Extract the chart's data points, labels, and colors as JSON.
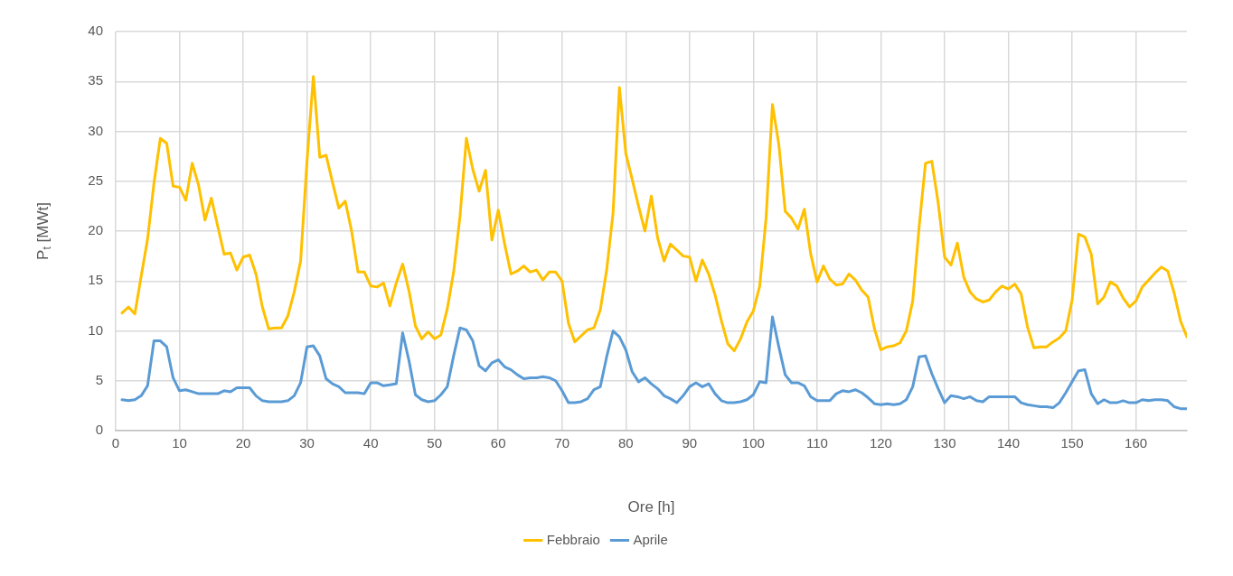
{
  "chart_data": {
    "type": "line",
    "xlabel": "Ore [h]",
    "ylabel": "P$_{t}$ [MWt]",
    "x": [
      1,
      2,
      3,
      4,
      5,
      6,
      7,
      8,
      9,
      10,
      11,
      12,
      13,
      14,
      15,
      16,
      17,
      18,
      19,
      20,
      21,
      22,
      23,
      24,
      25,
      26,
      27,
      28,
      29,
      30,
      31,
      32,
      33,
      34,
      35,
      36,
      37,
      38,
      39,
      40,
      41,
      42,
      43,
      44,
      45,
      46,
      47,
      48,
      49,
      50,
      51,
      52,
      53,
      54,
      55,
      56,
      57,
      58,
      59,
      60,
      61,
      62,
      63,
      64,
      65,
      66,
      67,
      68,
      69,
      70,
      71,
      72,
      73,
      74,
      75,
      76,
      77,
      78,
      79,
      80,
      81,
      82,
      83,
      84,
      85,
      86,
      87,
      88,
      89,
      90,
      91,
      92,
      93,
      94,
      95,
      96,
      97,
      98,
      99,
      100,
      101,
      102,
      103,
      104,
      105,
      106,
      107,
      108,
      109,
      110,
      111,
      112,
      113,
      114,
      115,
      116,
      117,
      118,
      119,
      120,
      121,
      122,
      123,
      124,
      125,
      126,
      127,
      128,
      129,
      130,
      131,
      132,
      133,
      134,
      135,
      136,
      137,
      138,
      139,
      140,
      141,
      142,
      143,
      144,
      145,
      146,
      147,
      148,
      149,
      150,
      151,
      152,
      153,
      154,
      155,
      156,
      157,
      158,
      159,
      160,
      161,
      162,
      163,
      164,
      165,
      166,
      167,
      168
    ],
    "series": [
      {
        "name": "Febbraio",
        "color": "#ffc000",
        "values": [
          11.8,
          12.4,
          11.7,
          15.5,
          19.2,
          24.8,
          29.3,
          28.8,
          24.5,
          24.4,
          23.1,
          26.8,
          24.6,
          21.1,
          23.3,
          20.5,
          17.7,
          17.8,
          16.1,
          17.4,
          17.6,
          15.7,
          12.4,
          10.2,
          10.3,
          10.3,
          11.5,
          13.9,
          17.0,
          27.0,
          35.5,
          27.4,
          27.6,
          24.9,
          22.3,
          23.0,
          20.0,
          15.9,
          15.9,
          14.5,
          14.4,
          14.8,
          12.5,
          14.8,
          16.7,
          14.0,
          10.5,
          9.2,
          9.9,
          9.2,
          9.6,
          12.2,
          15.9,
          21.5,
          29.3,
          26.2,
          24.0,
          26.1,
          19.1,
          22.1,
          18.7,
          15.7,
          16.0,
          16.5,
          15.9,
          16.1,
          15.1,
          15.9,
          15.9,
          15.0,
          10.8,
          8.9,
          9.5,
          10.1,
          10.3,
          12.1,
          16.1,
          21.8,
          34.4,
          27.8,
          25.2,
          22.5,
          20.0,
          23.5,
          19.3,
          17.0,
          18.7,
          18.1,
          17.5,
          17.4,
          15.0,
          17.1,
          15.7,
          13.6,
          11.0,
          8.7,
          8.0,
          9.2,
          10.9,
          12.0,
          14.5,
          21.3,
          32.7,
          28.7,
          22.0,
          21.3,
          20.2,
          22.2,
          17.7,
          14.9,
          16.5,
          15.2,
          14.6,
          14.7,
          15.7,
          15.1,
          14.1,
          13.4,
          10.2,
          8.1,
          8.4,
          8.5,
          8.8,
          10.0,
          13.0,
          20.4,
          26.8,
          27.0,
          22.8,
          17.4,
          16.6,
          18.8,
          15.4,
          13.9,
          13.2,
          12.9,
          13.1,
          13.9,
          14.5,
          14.2,
          14.7,
          13.7,
          10.4,
          8.3,
          8.4,
          8.4,
          8.9,
          9.3,
          10.0,
          13.1,
          19.7,
          19.4,
          17.7,
          12.7,
          13.4,
          14.9,
          14.5,
          13.3,
          12.4,
          13.0,
          14.4,
          15.1,
          15.8,
          16.4,
          16.0,
          13.8,
          11.0,
          9.4
        ]
      },
      {
        "name": "Aprile",
        "color": "#5b9bd5",
        "values": [
          3.1,
          3.0,
          3.1,
          3.5,
          4.5,
          9.0,
          9.0,
          8.4,
          5.3,
          4.0,
          4.1,
          3.9,
          3.7,
          3.7,
          3.7,
          3.7,
          4.0,
          3.9,
          4.3,
          4.3,
          4.3,
          3.5,
          3.0,
          2.9,
          2.9,
          2.9,
          3.0,
          3.5,
          4.8,
          8.4,
          8.5,
          7.5,
          5.2,
          4.7,
          4.4,
          3.8,
          3.8,
          3.8,
          3.7,
          4.8,
          4.8,
          4.5,
          4.6,
          4.7,
          9.8,
          7.0,
          3.6,
          3.1,
          2.9,
          3.0,
          3.6,
          4.4,
          7.5,
          10.3,
          10.1,
          9.0,
          6.5,
          6.0,
          6.8,
          7.1,
          6.4,
          6.1,
          5.6,
          5.2,
          5.3,
          5.3,
          5.4,
          5.3,
          5.0,
          4.0,
          2.8,
          2.8,
          2.9,
          3.2,
          4.1,
          4.4,
          7.4,
          10.0,
          9.4,
          8.1,
          5.9,
          4.9,
          5.3,
          4.7,
          4.2,
          3.5,
          3.2,
          2.8,
          3.5,
          4.4,
          4.8,
          4.4,
          4.7,
          3.7,
          3.0,
          2.8,
          2.8,
          2.9,
          3.1,
          3.6,
          4.9,
          4.8,
          11.4,
          8.4,
          5.6,
          4.8,
          4.8,
          4.5,
          3.4,
          3.0,
          3.0,
          3.0,
          3.7,
          4.0,
          3.9,
          4.1,
          3.8,
          3.3,
          2.7,
          2.6,
          2.7,
          2.6,
          2.7,
          3.1,
          4.4,
          7.4,
          7.5,
          5.7,
          4.2,
          2.8,
          3.5,
          3.4,
          3.2,
          3.4,
          3.0,
          2.9,
          3.4,
          3.4,
          3.4,
          3.4,
          3.4,
          2.8,
          2.6,
          2.5,
          2.4,
          2.4,
          2.3,
          2.8,
          3.8,
          4.9,
          6.0,
          6.1,
          3.7,
          2.7,
          3.1,
          2.8,
          2.8,
          3.0,
          2.8,
          2.8,
          3.1,
          3.0,
          3.1,
          3.1,
          3.0,
          2.4,
          2.2,
          2.2
        ]
      }
    ],
    "xlim": [
      0,
      168
    ],
    "xticks": [
      0,
      10,
      20,
      30,
      40,
      50,
      60,
      70,
      80,
      90,
      100,
      110,
      120,
      130,
      140,
      150,
      160
    ],
    "ylim": [
      0,
      40
    ],
    "yticks": [
      0,
      5,
      10,
      15,
      20,
      25,
      30,
      35,
      40
    ],
    "grid": true,
    "legend": "bottom",
    "marker": "none",
    "line_style": "solid"
  }
}
